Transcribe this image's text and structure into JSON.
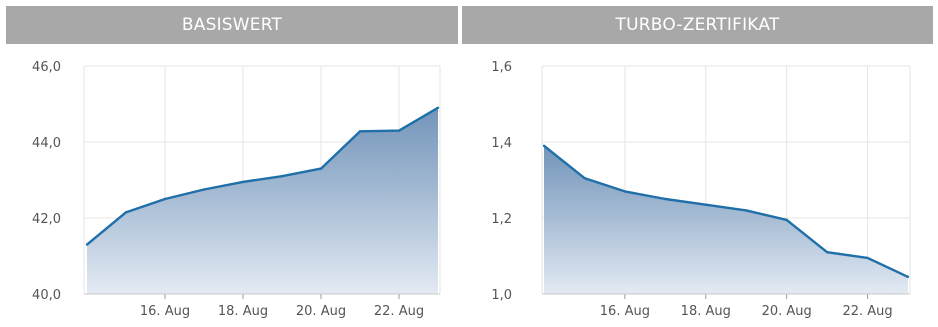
{
  "chart_data": [
    {
      "type": "area",
      "title": "BASISWERT",
      "x": [
        "14. Aug",
        "15. Aug",
        "16. Aug",
        "17. Aug",
        "18. Aug",
        "19. Aug",
        "20. Aug",
        "21. Aug",
        "22. Aug",
        "23. Aug"
      ],
      "values": [
        41.3,
        42.15,
        42.5,
        42.75,
        42.95,
        43.1,
        43.3,
        44.28,
        44.3,
        44.9
      ],
      "xticks": [
        "16. Aug",
        "18. Aug",
        "20. Aug",
        "22. Aug"
      ],
      "yticks": [
        "40,0",
        "42,0",
        "44,0",
        "46,0"
      ],
      "ylim": [
        40,
        46
      ],
      "grid": true,
      "colors": {
        "line": "#1f6fa8",
        "fill_top": "#6b8fb6",
        "fill_bottom": "#e3eaf3"
      }
    },
    {
      "type": "area",
      "title": "TURBO-ZERTIFIKAT",
      "x": [
        "14. Aug",
        "15. Aug",
        "16. Aug",
        "17. Aug",
        "18. Aug",
        "19. Aug",
        "20. Aug",
        "21. Aug",
        "22. Aug",
        "23. Aug"
      ],
      "values": [
        1.39,
        1.305,
        1.27,
        1.25,
        1.235,
        1.22,
        1.195,
        1.11,
        1.095,
        1.045
      ],
      "xticks": [
        "16. Aug",
        "18. Aug",
        "20. Aug",
        "22. Aug"
      ],
      "yticks": [
        "1,0",
        "1,2",
        "1,4",
        "1,6"
      ],
      "ylim": [
        1.0,
        1.6
      ],
      "grid": true,
      "colors": {
        "line": "#1f6fa8",
        "fill_top": "#6b8fb6",
        "fill_bottom": "#e3eaf3"
      }
    }
  ]
}
